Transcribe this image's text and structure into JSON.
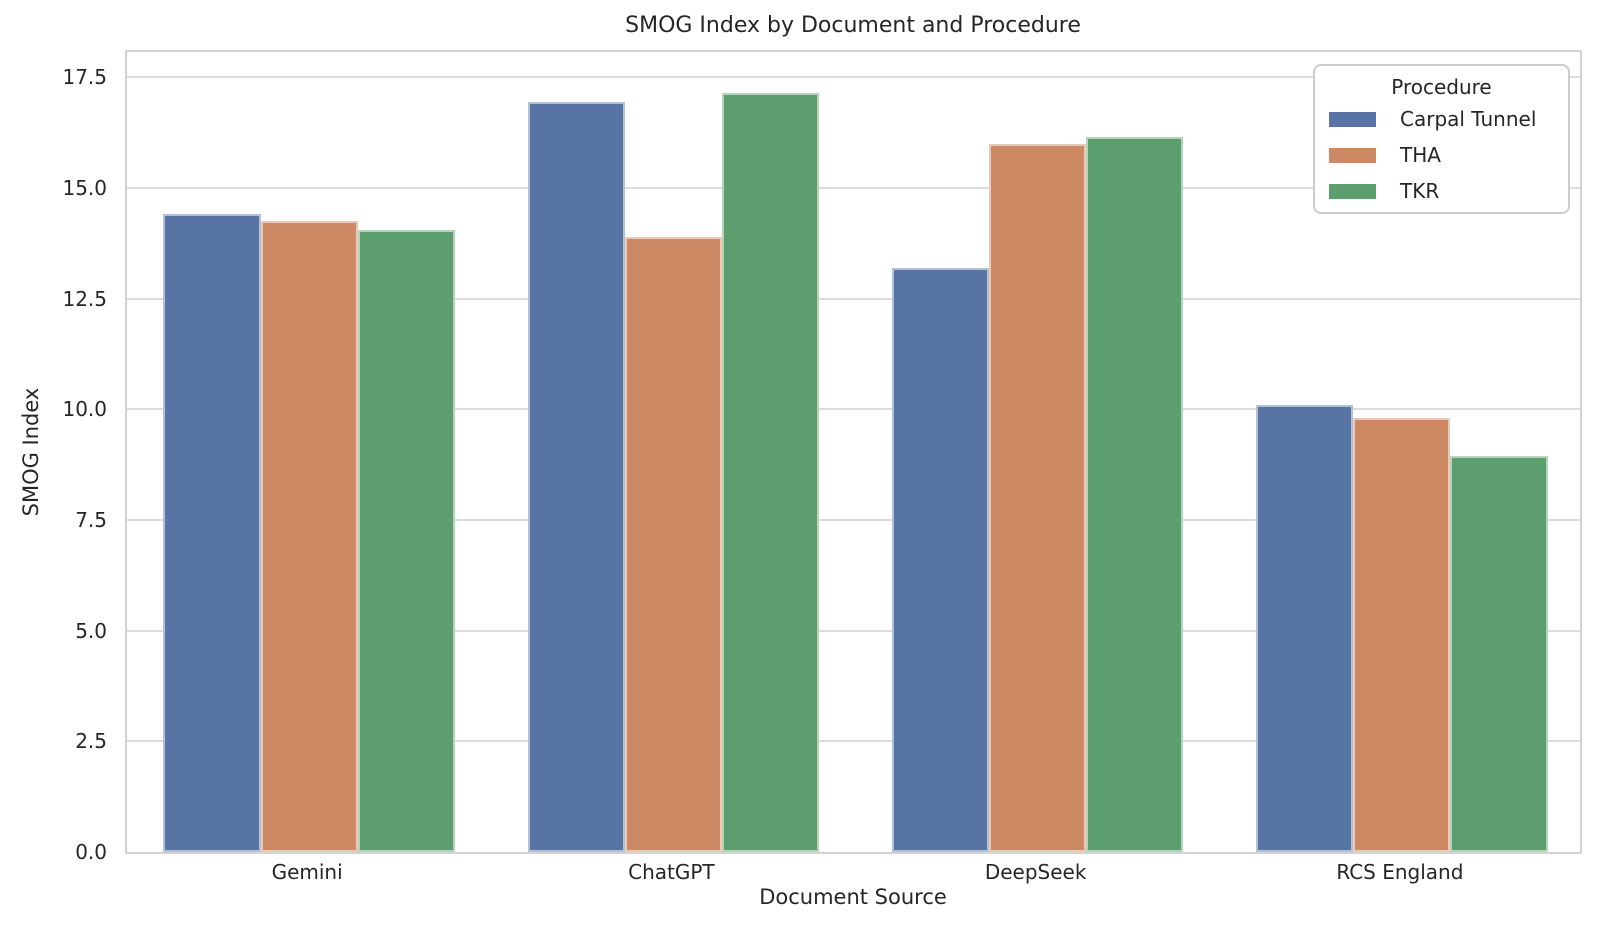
{
  "chart_data": {
    "type": "bar",
    "title": "SMOG Index by Document and Procedure",
    "xlabel": "Document Source",
    "ylabel": "SMOG Index",
    "categories": [
      "Gemini",
      "ChatGPT",
      "DeepSeek",
      "RCS England"
    ],
    "series": [
      {
        "name": "Carpal Tunnel",
        "color": "#5874A4",
        "values": [
          14.4,
          16.95,
          13.2,
          10.1
        ]
      },
      {
        "name": "THA",
        "color": "#CC8963",
        "values": [
          14.25,
          13.9,
          16.0,
          9.8
        ]
      },
      {
        "name": "TKR",
        "color": "#5D9E6E",
        "values": [
          14.05,
          17.15,
          16.15,
          8.95
        ]
      }
    ],
    "ylim": [
      0,
      18.07
    ],
    "yticks": [
      0.0,
      2.5,
      5.0,
      7.5,
      10.0,
      12.5,
      15.0,
      17.5
    ],
    "ytick_labels": [
      "0.0",
      "2.5",
      "5.0",
      "7.5",
      "10.0",
      "12.5",
      "15.0",
      "17.5"
    ],
    "grid": "horizontal",
    "bar_group_width_fraction": 0.8,
    "legend": {
      "title": "Procedure",
      "position": "upper right"
    }
  },
  "colors": {
    "grid": "#dcdcdc",
    "spine": "#d3d3d3",
    "text": "#262626",
    "background": "#ffffff"
  }
}
